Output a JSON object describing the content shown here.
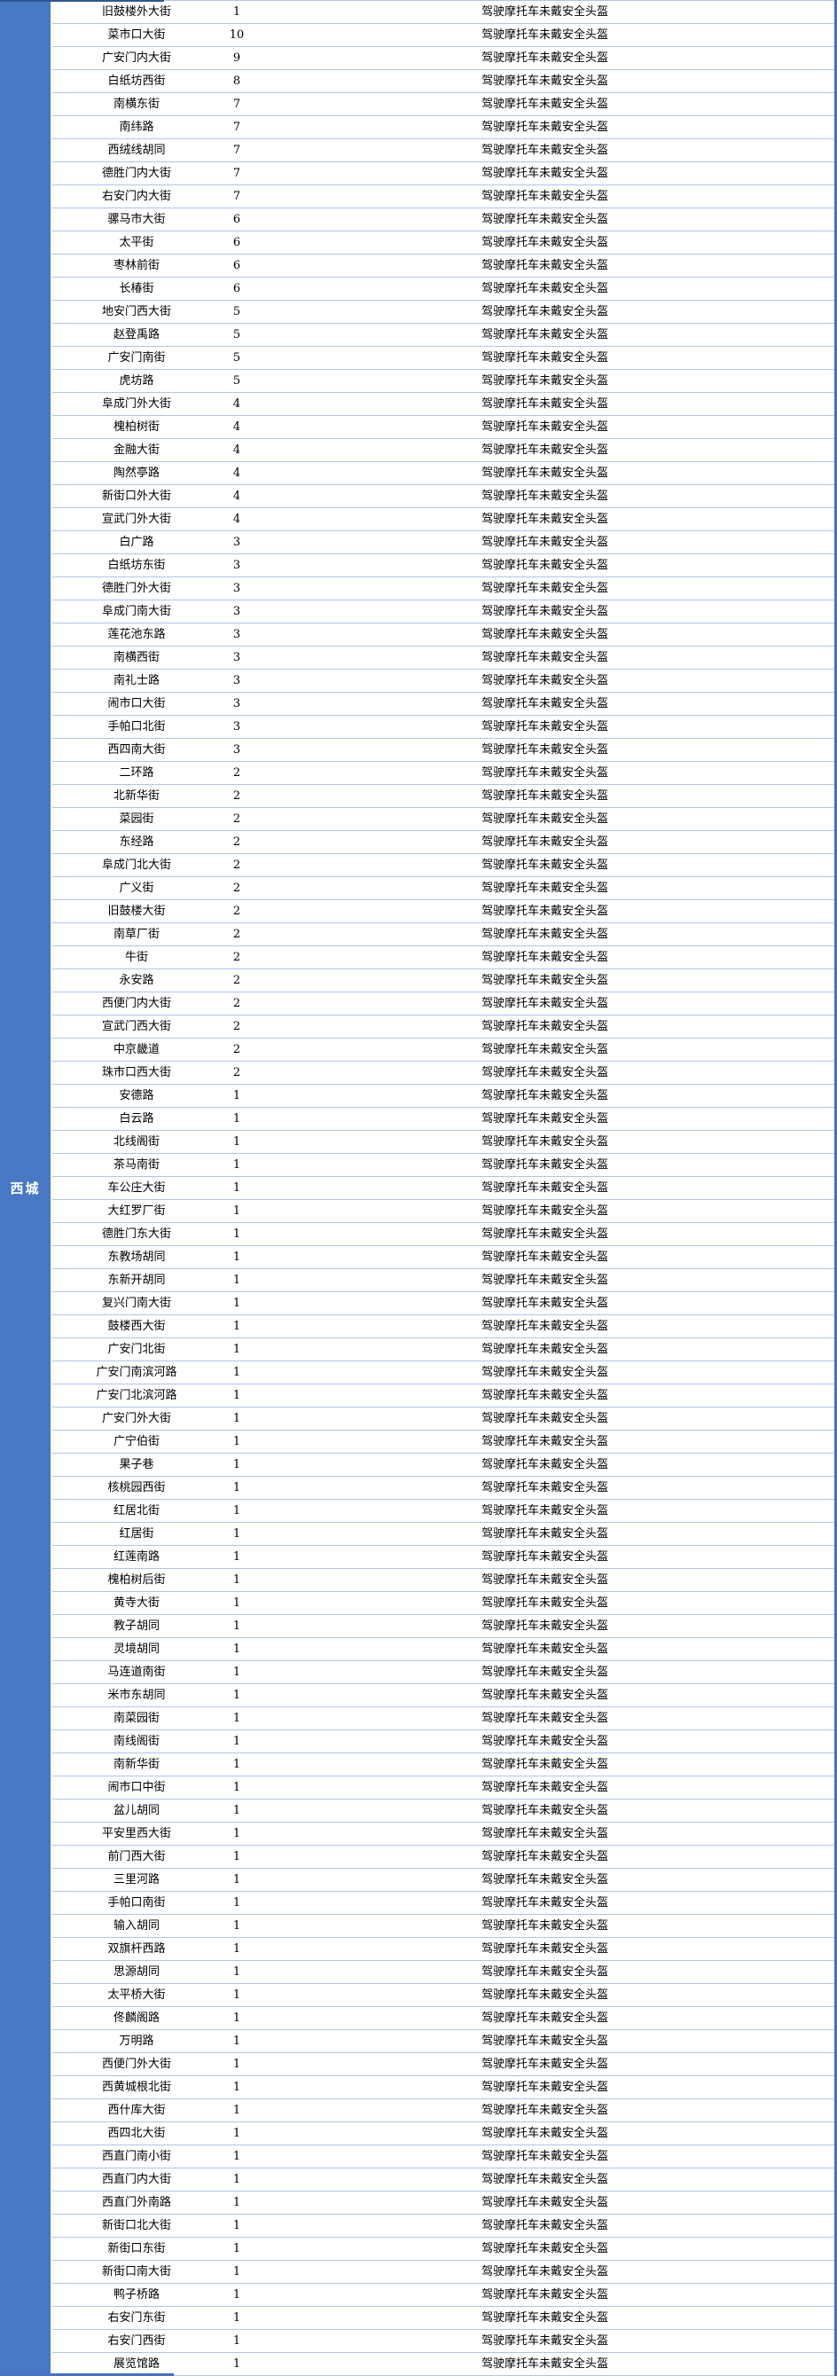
{
  "region": {
    "label": "西城"
  },
  "colors": {
    "region_bg": "#4778C4",
    "row_border": "#AEC6E8",
    "right_edge_border": "#4472C4",
    "section_border_top": "#31558E",
    "section_border_bottom": "#4472C4",
    "text": "#000000",
    "region_label_text": "#FFFFFF"
  },
  "table": {
    "violation_label": "驾驶摩托车未戴安全头盔",
    "rows": [
      {
        "street": "旧鼓楼外大街",
        "count": 1
      },
      {
        "street": "菜市口大街",
        "count": 10
      },
      {
        "street": "广安门内大街",
        "count": 9
      },
      {
        "street": "白纸坊西街",
        "count": 8
      },
      {
        "street": "南横东街",
        "count": 7
      },
      {
        "street": "南纬路",
        "count": 7
      },
      {
        "street": "西绒线胡同",
        "count": 7
      },
      {
        "street": "德胜门内大街",
        "count": 7
      },
      {
        "street": "右安门内大街",
        "count": 7
      },
      {
        "street": "骡马市大街",
        "count": 6
      },
      {
        "street": "太平街",
        "count": 6
      },
      {
        "street": "枣林前街",
        "count": 6
      },
      {
        "street": "长椿街",
        "count": 6
      },
      {
        "street": "地安门西大街",
        "count": 5
      },
      {
        "street": "赵登禹路",
        "count": 5
      },
      {
        "street": "广安门南街",
        "count": 5
      },
      {
        "street": "虎坊路",
        "count": 5
      },
      {
        "street": "阜成门外大街",
        "count": 4
      },
      {
        "street": "槐柏树街",
        "count": 4
      },
      {
        "street": "金融大街",
        "count": 4
      },
      {
        "street": "陶然亭路",
        "count": 4
      },
      {
        "street": "新街口外大街",
        "count": 4
      },
      {
        "street": "宣武门外大街",
        "count": 4
      },
      {
        "street": "白广路",
        "count": 3
      },
      {
        "street": "白纸坊东街",
        "count": 3
      },
      {
        "street": "德胜门外大街",
        "count": 3
      },
      {
        "street": "阜成门南大街",
        "count": 3
      },
      {
        "street": "莲花池东路",
        "count": 3
      },
      {
        "street": "南横西街",
        "count": 3
      },
      {
        "street": "南礼士路",
        "count": 3
      },
      {
        "street": "闹市口大街",
        "count": 3
      },
      {
        "street": "手帕口北街",
        "count": 3
      },
      {
        "street": "西四南大街",
        "count": 3
      },
      {
        "street": "二环路",
        "count": 2
      },
      {
        "street": "北新华街",
        "count": 2
      },
      {
        "street": "菜园街",
        "count": 2
      },
      {
        "street": "东经路",
        "count": 2
      },
      {
        "street": "阜成门北大街",
        "count": 2
      },
      {
        "street": "广义街",
        "count": 2
      },
      {
        "street": "旧鼓楼大街",
        "count": 2
      },
      {
        "street": "南草厂街",
        "count": 2
      },
      {
        "street": "牛街",
        "count": 2
      },
      {
        "street": "永安路",
        "count": 2
      },
      {
        "street": "西便门内大街",
        "count": 2
      },
      {
        "street": "宣武门西大街",
        "count": 2
      },
      {
        "street": "中京畿道",
        "count": 2
      },
      {
        "street": "珠市口西大街",
        "count": 2
      },
      {
        "street": "安德路",
        "count": 1
      },
      {
        "street": "白云路",
        "count": 1
      },
      {
        "street": "北线阁街",
        "count": 1
      },
      {
        "street": "茶马南街",
        "count": 1
      },
      {
        "street": "车公庄大街",
        "count": 1
      },
      {
        "street": "大红罗厂街",
        "count": 1
      },
      {
        "street": "德胜门东大街",
        "count": 1
      },
      {
        "street": "东教场胡同",
        "count": 1
      },
      {
        "street": "东新开胡同",
        "count": 1
      },
      {
        "street": "复兴门南大街",
        "count": 1
      },
      {
        "street": "鼓楼西大街",
        "count": 1
      },
      {
        "street": "广安门北街",
        "count": 1
      },
      {
        "street": "广安门南滨河路",
        "count": 1
      },
      {
        "street": "广安门北滨河路",
        "count": 1
      },
      {
        "street": "广安门外大街",
        "count": 1
      },
      {
        "street": "广宁伯街",
        "count": 1
      },
      {
        "street": "果子巷",
        "count": 1
      },
      {
        "street": "核桃园西街",
        "count": 1
      },
      {
        "street": "红居北街",
        "count": 1
      },
      {
        "street": "红居街",
        "count": 1
      },
      {
        "street": "红莲南路",
        "count": 1
      },
      {
        "street": "槐柏树后街",
        "count": 1
      },
      {
        "street": "黄寺大街",
        "count": 1
      },
      {
        "street": "教子胡同",
        "count": 1
      },
      {
        "street": "灵境胡同",
        "count": 1
      },
      {
        "street": "马连道南街",
        "count": 1
      },
      {
        "street": "米市东胡同",
        "count": 1
      },
      {
        "street": "南菜园街",
        "count": 1
      },
      {
        "street": "南线阁街",
        "count": 1
      },
      {
        "street": "南新华街",
        "count": 1
      },
      {
        "street": "闹市口中街",
        "count": 1
      },
      {
        "street": "盆儿胡同",
        "count": 1
      },
      {
        "street": "平安里西大街",
        "count": 1
      },
      {
        "street": "前门西大街",
        "count": 1
      },
      {
        "street": "三里河路",
        "count": 1
      },
      {
        "street": "手帕口南街",
        "count": 1
      },
      {
        "street": "输入胡同",
        "count": 1
      },
      {
        "street": "双旗杆西路",
        "count": 1
      },
      {
        "street": "思源胡同",
        "count": 1
      },
      {
        "street": "太平桥大街",
        "count": 1
      },
      {
        "street": "佟麟阁路",
        "count": 1
      },
      {
        "street": "万明路",
        "count": 1
      },
      {
        "street": "西便门外大街",
        "count": 1
      },
      {
        "street": "西黄城根北街",
        "count": 1
      },
      {
        "street": "西什库大街",
        "count": 1
      },
      {
        "street": "西四北大街",
        "count": 1
      },
      {
        "street": "西直门南小街",
        "count": 1
      },
      {
        "street": "西直门内大街",
        "count": 1
      },
      {
        "street": "西直门外南路",
        "count": 1
      },
      {
        "street": "新街口北大街",
        "count": 1
      },
      {
        "street": "新街口东街",
        "count": 1
      },
      {
        "street": "新街口南大街",
        "count": 1
      },
      {
        "street": "鸭子桥路",
        "count": 1
      },
      {
        "street": "右安门东街",
        "count": 1
      },
      {
        "street": "右安门西街",
        "count": 1
      },
      {
        "street": "展览馆路",
        "count": 1
      }
    ]
  }
}
